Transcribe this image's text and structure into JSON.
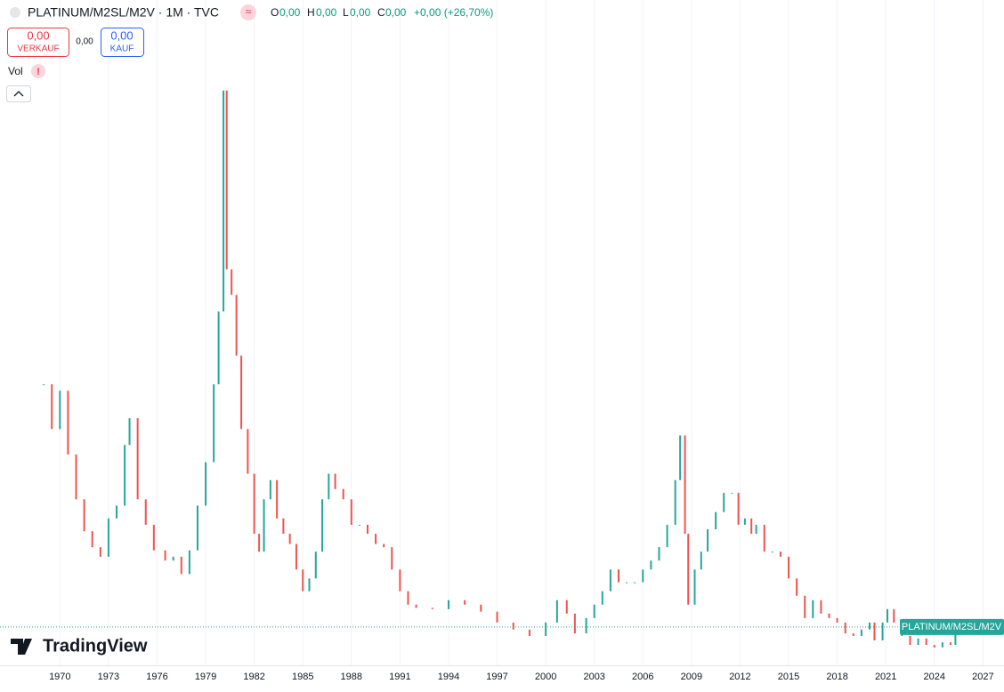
{
  "header": {
    "symbol": "PLATINUM/M2SL/M2V · 1M · TVC",
    "o_label": "O",
    "o_value": "0,00",
    "h_label": "H",
    "h_value": "0,00",
    "l_label": "L",
    "l_value": "0,00",
    "c_label": "C",
    "c_value": "0,00",
    "change": "+0,00 (+26,70%)"
  },
  "trade": {
    "sell_price": "0,00",
    "sell_label": "VERKAUF",
    "spread": "0,00",
    "buy_price": "0,00",
    "buy_label": "KAUF"
  },
  "indicator": {
    "name": "Vol",
    "warning": "!"
  },
  "logo": "TradingView",
  "chart_data": {
    "type": "candlestick",
    "name": "PLATINUM/M2SL/M2V",
    "up_color": "#26a69a",
    "down_color": "#ef5350",
    "x": [
      1969.0,
      1969.5,
      1970.0,
      1970.5,
      1971.0,
      1971.5,
      1972.0,
      1972.5,
      1973.0,
      1973.5,
      1974.0,
      1974.3,
      1974.8,
      1975.3,
      1975.8,
      1976.5,
      1977.0,
      1977.5,
      1978.0,
      1978.5,
      1979.0,
      1979.5,
      1979.8,
      1980.1,
      1980.3,
      1980.6,
      1980.9,
      1981.2,
      1981.6,
      1982.0,
      1982.3,
      1982.6,
      1983.0,
      1983.4,
      1983.8,
      1984.2,
      1984.6,
      1985.0,
      1985.4,
      1985.8,
      1986.2,
      1986.6,
      1987.0,
      1987.5,
      1988.0,
      1988.5,
      1989.0,
      1989.5,
      1990.0,
      1990.5,
      1991.0,
      1991.5,
      1992.0,
      1993.0,
      1994.0,
      1995.0,
      1996.0,
      1997.0,
      1998.0,
      1999.0,
      2000.0,
      2000.7,
      2001.3,
      2001.8,
      2002.5,
      2003.0,
      2003.5,
      2004.0,
      2004.5,
      2005.0,
      2005.5,
      2006.0,
      2006.5,
      2007.0,
      2007.5,
      2008.0,
      2008.3,
      2008.6,
      2008.8,
      2009.2,
      2009.6,
      2010.0,
      2010.5,
      2011.0,
      2011.5,
      2011.9,
      2012.3,
      2012.7,
      2013.0,
      2013.5,
      2014.0,
      2014.5,
      2015.0,
      2015.5,
      2016.0,
      2016.5,
      2017.0,
      2017.5,
      2018.0,
      2018.5,
      2019.0,
      2019.5,
      2020.0,
      2020.3,
      2020.8,
      2021.1,
      2021.5,
      2022.0,
      2022.5,
      2023.0,
      2023.5,
      2024.0,
      2024.5,
      2025.0,
      2025.3
    ],
    "values": [
      44,
      37,
      43,
      33,
      26,
      21,
      18.5,
      17,
      23,
      25,
      34.5,
      38.7,
      26,
      22,
      18,
      16.4,
      17,
      14.3,
      18,
      25,
      31.8,
      44,
      55.4,
      90,
      62,
      58,
      48.5,
      37,
      30,
      20.6,
      17.8,
      26,
      29,
      23,
      20.6,
      19,
      15,
      11.6,
      13.6,
      17.8,
      26,
      30,
      27.6,
      26,
      22,
      22,
      20.6,
      19,
      18.5,
      15,
      11.6,
      9.5,
      9,
      8.8,
      10.2,
      9.5,
      8.4,
      6.7,
      5.6,
      4.6,
      6.7,
      10.2,
      8.1,
      5,
      7.4,
      9.5,
      11.6,
      15,
      13,
      13,
      13,
      15,
      16.4,
      18.5,
      22,
      29,
      36,
      20.6,
      9.5,
      15,
      17.8,
      21.3,
      24,
      27,
      27,
      22,
      23,
      20.6,
      22,
      17.8,
      17.8,
      17,
      13.6,
      10.9,
      7.4,
      10.2,
      8.1,
      7.4,
      6.7,
      5,
      4.6,
      5.6,
      6.7,
      3.9,
      6.7,
      8.8,
      6.7,
      4.6,
      3.2,
      4.2,
      3.2,
      2.8,
      3.6,
      3.2,
      6
    ],
    "xlim": [
      1966.3,
      2028.3
    ],
    "ylim": [
      0,
      100
    ],
    "xticks": [
      1970,
      1973,
      1976,
      1979,
      1982,
      1985,
      1988,
      1991,
      1994,
      1997,
      2000,
      2003,
      2006,
      2009,
      2012,
      2015,
      2018,
      2021,
      2024,
      2027
    ],
    "grid": true
  }
}
